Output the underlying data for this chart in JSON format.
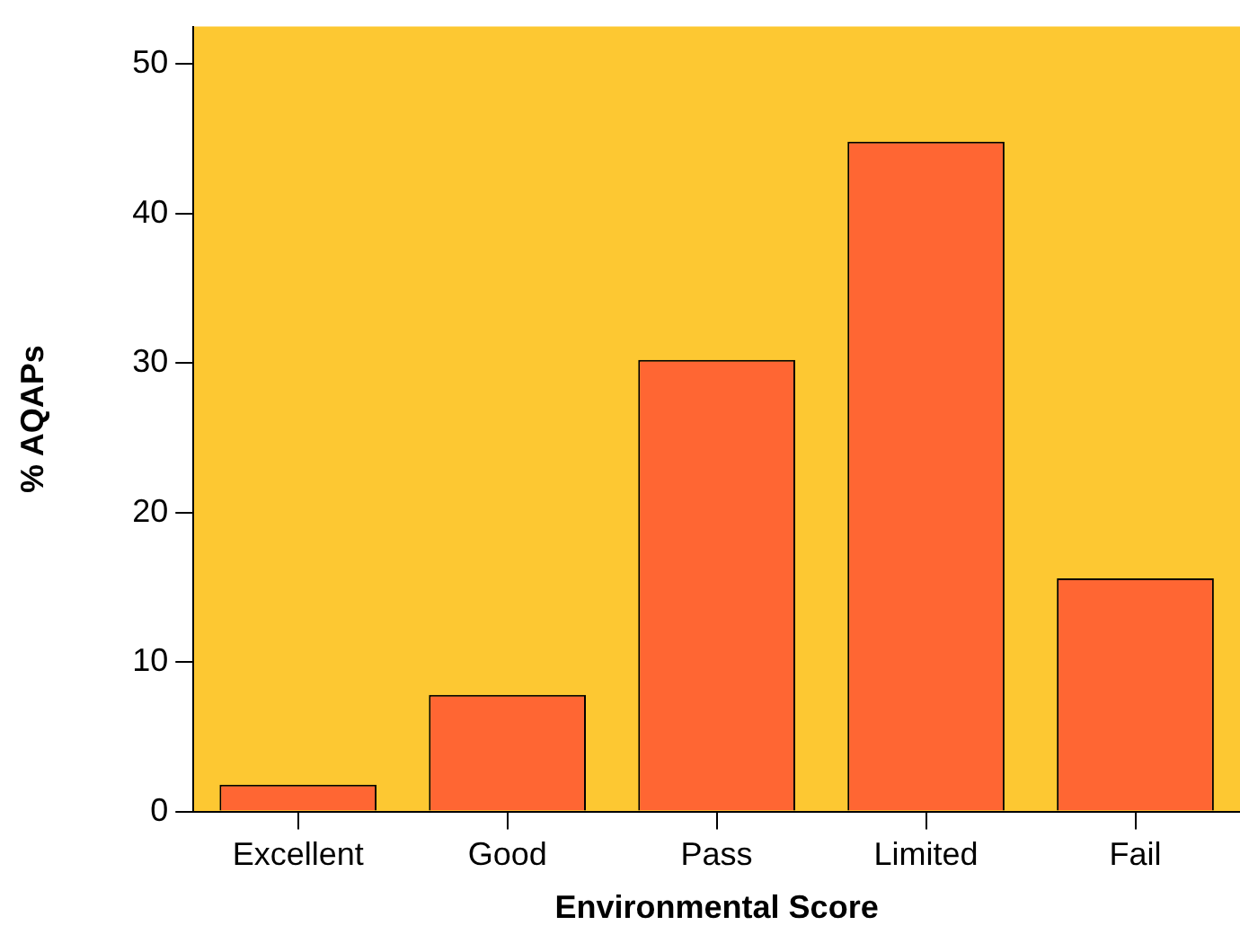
{
  "chart_data": {
    "type": "bar",
    "xlabel": "Environmental Score",
    "ylabel": "% AQAPs",
    "categories": [
      "Excellent",
      "Good",
      "Pass",
      "Limited",
      "Fail"
    ],
    "values": [
      1.8,
      7.8,
      30.2,
      44.8,
      15.6
    ],
    "color": "#ff6633",
    "ylim": [
      0,
      52.5
    ],
    "yticks": [
      0,
      10,
      20,
      30,
      40,
      50
    ],
    "grid": false,
    "legend": false
  }
}
